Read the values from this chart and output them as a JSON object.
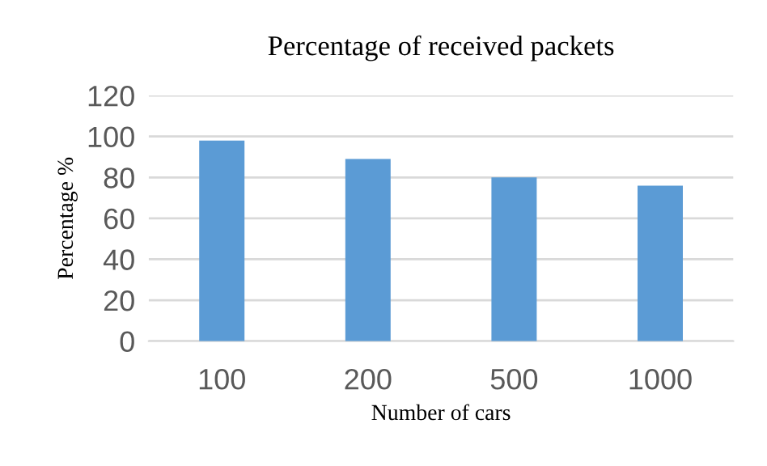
{
  "chart_data": {
    "type": "bar",
    "title": "Percentage of received packets",
    "xlabel": "Number of cars",
    "ylabel": "Percentage %",
    "categories": [
      "100",
      "200",
      "500",
      "1000"
    ],
    "values": [
      98,
      89,
      80,
      76
    ],
    "color": "#5b9bd5",
    "ylim": [
      0,
      120
    ],
    "yticks": [
      0,
      20,
      40,
      60,
      80,
      100,
      120
    ],
    "grid": "y"
  }
}
